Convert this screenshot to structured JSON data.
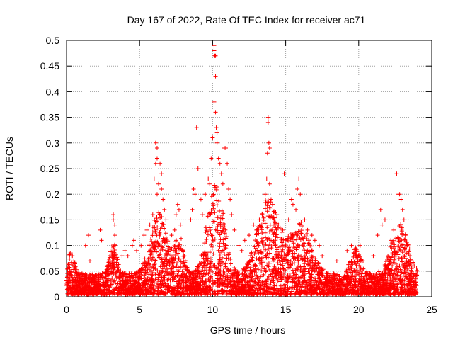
{
  "chart_data": {
    "type": "scatter",
    "title": "Day 167 of 2022, Rate Of TEC Index for receiver ac71",
    "xlabel": "GPS time / hours",
    "ylabel": "ROTI / TECUs",
    "xlim": [
      0,
      25
    ],
    "ylim": [
      0,
      0.5
    ],
    "xticks": [
      0,
      5,
      10,
      15,
      20,
      25
    ],
    "yticks": [
      0,
      0.05,
      0.1,
      0.15,
      0.2,
      0.25,
      0.3,
      0.35,
      0.4,
      0.45,
      0.5
    ],
    "grid": true,
    "marker": "+",
    "color": "#ff0000",
    "x_range_of_data": [
      0,
      24
    ],
    "series": [
      {
        "points": [
          [
            0.1,
            0.06
          ],
          [
            0.2,
            0.05
          ],
          [
            0.4,
            0.08
          ],
          [
            0.5,
            0.07
          ],
          [
            1.3,
            0.1
          ],
          [
            1.5,
            0.12
          ],
          [
            1.6,
            0.07
          ],
          [
            2.3,
            0.13
          ],
          [
            2.4,
            0.11
          ],
          [
            3.2,
            0.16
          ],
          [
            3.2,
            0.15
          ],
          [
            3.3,
            0.12
          ],
          [
            3.3,
            0.14
          ],
          [
            3.3,
            0.1
          ],
          [
            3.8,
            0.08
          ],
          [
            4.0,
            0.09
          ],
          [
            4.2,
            0.08
          ],
          [
            4.5,
            0.1
          ],
          [
            4.6,
            0.11
          ],
          [
            4.8,
            0.09
          ],
          [
            5.1,
            0.1
          ],
          [
            5.3,
            0.12
          ],
          [
            5.5,
            0.13
          ],
          [
            5.7,
            0.14
          ],
          [
            5.9,
            0.16
          ],
          [
            6.0,
            0.23
          ],
          [
            6.1,
            0.26
          ],
          [
            6.1,
            0.3
          ],
          [
            6.2,
            0.29
          ],
          [
            6.2,
            0.27
          ],
          [
            6.2,
            0.2
          ],
          [
            6.3,
            0.22
          ],
          [
            6.4,
            0.26
          ],
          [
            6.5,
            0.24
          ],
          [
            6.5,
            0.21
          ],
          [
            6.6,
            0.19
          ],
          [
            6.7,
            0.17
          ],
          [
            6.8,
            0.15
          ],
          [
            7.2,
            0.12
          ],
          [
            7.4,
            0.13
          ],
          [
            7.5,
            0.16
          ],
          [
            7.6,
            0.18
          ],
          [
            7.7,
            0.17
          ],
          [
            7.8,
            0.14
          ],
          [
            8.5,
            0.15
          ],
          [
            8.6,
            0.17
          ],
          [
            8.7,
            0.21
          ],
          [
            8.8,
            0.2
          ],
          [
            8.9,
            0.33
          ],
          [
            9.0,
            0.25
          ],
          [
            9.2,
            0.19
          ],
          [
            9.3,
            0.16
          ],
          [
            9.5,
            0.2
          ],
          [
            9.7,
            0.23
          ],
          [
            9.8,
            0.22
          ],
          [
            9.9,
            0.27
          ],
          [
            10.0,
            0.31
          ],
          [
            10.1,
            0.49
          ],
          [
            10.1,
            0.48
          ],
          [
            10.15,
            0.47
          ],
          [
            10.2,
            0.47
          ],
          [
            10.2,
            0.43
          ],
          [
            10.1,
            0.38
          ],
          [
            10.2,
            0.36
          ],
          [
            10.25,
            0.33
          ],
          [
            10.3,
            0.3
          ],
          [
            10.3,
            0.32
          ],
          [
            10.4,
            0.27
          ],
          [
            10.5,
            0.26
          ],
          [
            10.6,
            0.24
          ],
          [
            10.7,
            0.22
          ],
          [
            10.8,
            0.29
          ],
          [
            10.9,
            0.29
          ],
          [
            11.0,
            0.26
          ],
          [
            11.1,
            0.21
          ],
          [
            11.2,
            0.19
          ],
          [
            11.3,
            0.16
          ],
          [
            11.5,
            0.13
          ],
          [
            11.8,
            0.1
          ],
          [
            12.0,
            0.09
          ],
          [
            12.2,
            0.11
          ],
          [
            12.5,
            0.12
          ],
          [
            12.8,
            0.14
          ],
          [
            13.0,
            0.13
          ],
          [
            13.2,
            0.15
          ],
          [
            13.4,
            0.16
          ],
          [
            13.6,
            0.2
          ],
          [
            13.7,
            0.23
          ],
          [
            13.75,
            0.28
          ],
          [
            13.8,
            0.35
          ],
          [
            13.8,
            0.34
          ],
          [
            13.85,
            0.3
          ],
          [
            13.9,
            0.29
          ],
          [
            13.9,
            0.22
          ],
          [
            14.0,
            0.19
          ],
          [
            14.1,
            0.18
          ],
          [
            14.2,
            0.15
          ],
          [
            14.4,
            0.16
          ],
          [
            14.5,
            0.14
          ],
          [
            14.8,
            0.13
          ],
          [
            14.9,
            0.24
          ],
          [
            15.2,
            0.15
          ],
          [
            15.4,
            0.19
          ],
          [
            15.5,
            0.18
          ],
          [
            15.7,
            0.17
          ],
          [
            15.8,
            0.21
          ],
          [
            15.9,
            0.23
          ],
          [
            16.0,
            0.2
          ],
          [
            16.3,
            0.15
          ],
          [
            16.5,
            0.13
          ],
          [
            16.8,
            0.12
          ],
          [
            17.0,
            0.11
          ],
          [
            17.3,
            0.1
          ],
          [
            17.5,
            0.08
          ],
          [
            18.5,
            0.07
          ],
          [
            19.2,
            0.09
          ],
          [
            19.5,
            0.1
          ],
          [
            19.8,
            0.08
          ],
          [
            20.1,
            0.1
          ],
          [
            20.3,
            0.07
          ],
          [
            21.0,
            0.08
          ],
          [
            21.3,
            0.12
          ],
          [
            21.5,
            0.17
          ],
          [
            21.6,
            0.14
          ],
          [
            21.8,
            0.15
          ],
          [
            22.0,
            0.08
          ],
          [
            22.2,
            0.11
          ],
          [
            22.4,
            0.13
          ],
          [
            22.6,
            0.24
          ],
          [
            22.7,
            0.2
          ],
          [
            22.8,
            0.2
          ],
          [
            22.9,
            0.19
          ],
          [
            23.0,
            0.17
          ],
          [
            23.1,
            0.15
          ],
          [
            23.2,
            0.12
          ],
          [
            23.3,
            0.1
          ],
          [
            23.5,
            0.08
          ],
          [
            23.8,
            0.06
          ],
          [
            24.0,
            0.05
          ]
        ]
      }
    ]
  }
}
